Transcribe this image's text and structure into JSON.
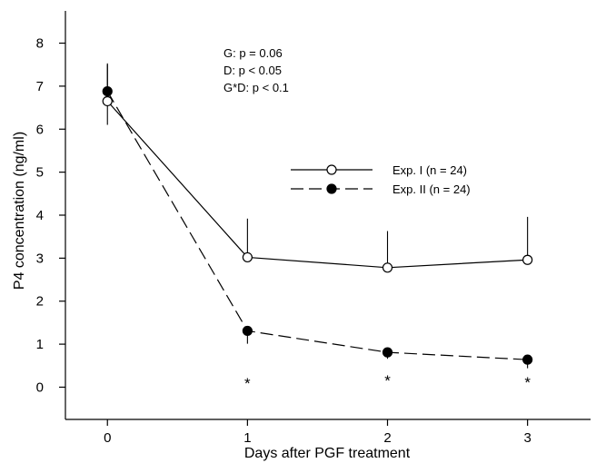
{
  "chart_data": {
    "type": "line",
    "title": "",
    "xlabel": "Days after PGF treatment",
    "ylabel": "P4 concentration (ng/ml)",
    "x": [
      0,
      1,
      2,
      3
    ],
    "xticks": [
      "0",
      "1",
      "2",
      "3"
    ],
    "yticks": [
      "0",
      "1",
      "2",
      "3",
      "4",
      "5",
      "6",
      "7",
      "8"
    ],
    "xlim": [
      -0.3,
      3.45
    ],
    "ylim": [
      -0.75,
      8.75
    ],
    "grid": false,
    "legend_position": "center-right",
    "series": [
      {
        "name": "Exp. I (n = 24)",
        "marker": "open-circle",
        "line_style": "solid",
        "values": [
          6.65,
          3.02,
          2.78,
          2.96
        ],
        "error_plus": [
          0.85,
          0.9,
          0.85,
          1.0
        ],
        "error_minus": [
          0.55,
          0,
          0,
          0
        ]
      },
      {
        "name": "Exp. II (n = 24)",
        "marker": "filled-circle",
        "line_style": "dashed",
        "values": [
          6.88,
          1.31,
          0.81,
          0.64
        ],
        "error_plus": [
          0.65,
          0,
          0,
          0
        ],
        "error_minus": [
          0,
          0.3,
          0.15,
          0.2
        ]
      }
    ],
    "stats": [
      "G: p = 0.06",
      "D: p < 0.05",
      "G*D: p < 0.1"
    ],
    "significance": {
      "x": [
        1,
        2,
        3
      ],
      "label": "*"
    }
  }
}
